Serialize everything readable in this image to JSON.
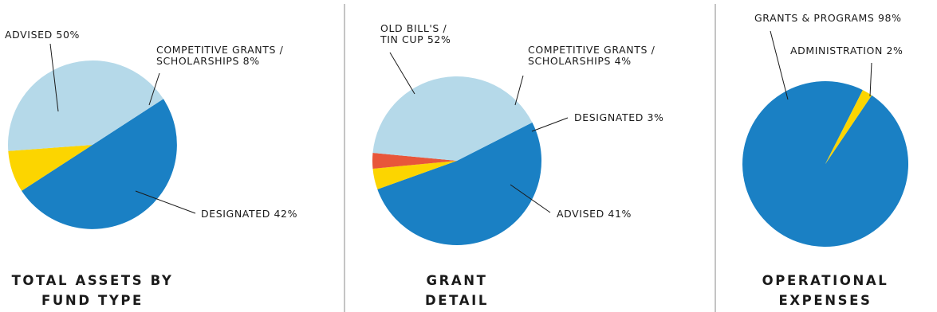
{
  "chart_data": [
    {
      "type": "pie",
      "title": [
        "TOTAL ASSETS BY",
        "FUND TYPE"
      ],
      "slices": [
        {
          "label": [
            "ADVISED 50%"
          ],
          "value": 50,
          "color": "#1a80c4"
        },
        {
          "label": [
            "COMPETITIVE GRANTS /",
            "SCHOLARSHIPS 8%"
          ],
          "value": 8,
          "color": "#fcd500"
        },
        {
          "label": [
            "DESIGNATED 42%"
          ],
          "value": 42,
          "color": "#b5d9e9"
        }
      ]
    },
    {
      "type": "pie",
      "title": [
        "GRANT",
        "DETAIL"
      ],
      "slices": [
        {
          "label": [
            "OLD BILL'S /",
            "TIN CUP 52%"
          ],
          "value": 52,
          "color": "#1a80c4"
        },
        {
          "label": [
            "COMPETITIVE GRANTS /",
            "SCHOLARSHIPS 4%"
          ],
          "value": 4,
          "color": "#fcd500"
        },
        {
          "label": [
            "DESIGNATED 3%"
          ],
          "value": 3,
          "color": "#e8563a"
        },
        {
          "label": [
            "ADVISED 41%"
          ],
          "value": 41,
          "color": "#b5d9e9"
        }
      ]
    },
    {
      "type": "pie",
      "title": [
        "OPERATIONAL",
        "EXPENSES"
      ],
      "slices": [
        {
          "label": [
            "GRANTS & PROGRAMS 98%"
          ],
          "value": 98,
          "color": "#1a80c4"
        },
        {
          "label": [
            "ADMINISTRATION 2%"
          ],
          "value": 2,
          "color": "#fcd500"
        }
      ]
    }
  ]
}
